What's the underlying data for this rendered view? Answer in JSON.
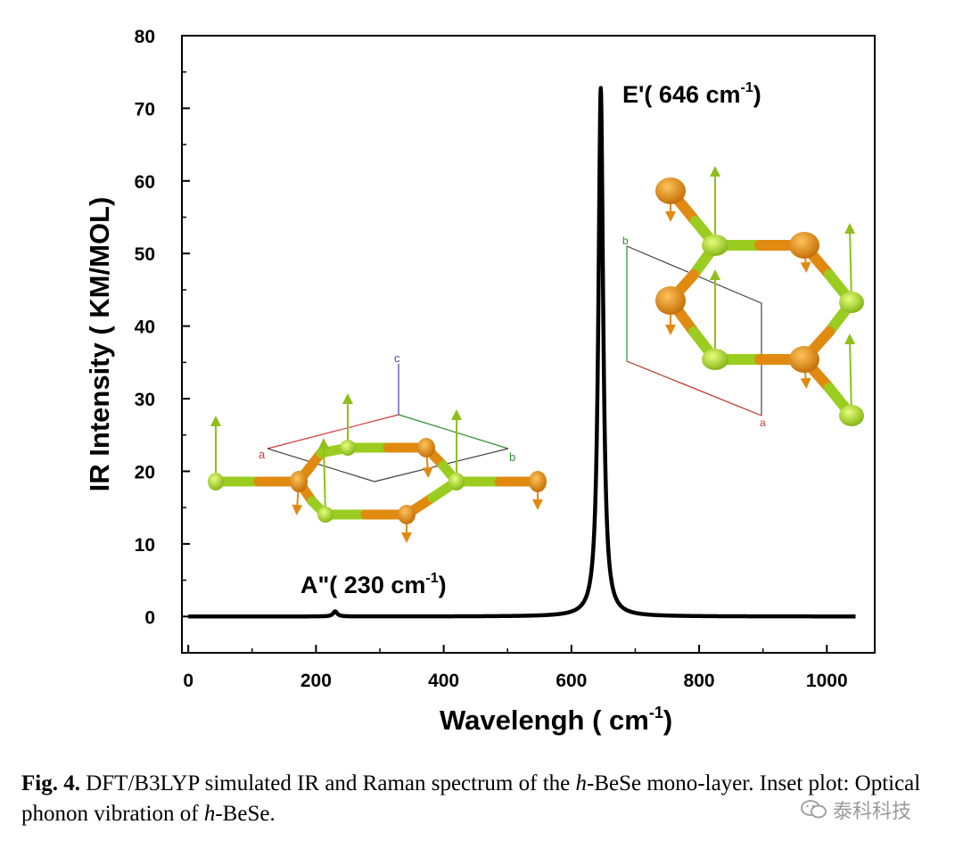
{
  "chart_data": {
    "type": "line",
    "xlabel": "Wavelengh ( cm",
    "xlabel_sup": "-1",
    "xlabel_tail": ")",
    "ylabel": "IR Intensity ( KM/MOL)",
    "xlim": [
      -10,
      1075
    ],
    "ylim": [
      -5,
      80
    ],
    "xticks": [
      "0",
      "200",
      "400",
      "600",
      "800",
      "1000"
    ],
    "xtick_values": [
      0,
      200,
      400,
      600,
      800,
      1000
    ],
    "yticks": [
      "0",
      "10",
      "20",
      "30",
      "40",
      "50",
      "60",
      "70",
      "80"
    ],
    "ytick_values": [
      0,
      10,
      20,
      30,
      40,
      50,
      60,
      70,
      80
    ],
    "series": [
      {
        "color": "#000000",
        "x_range": [
          0,
          1045
        ],
        "baseline": 0,
        "peaks": [
          {
            "x": 230,
            "height": 0.7,
            "hwhm": 4
          },
          {
            "x": 646,
            "height": 72.8,
            "hwhm": 4.5
          }
        ]
      }
    ],
    "annotations": [
      {
        "text": "E'( 646 cm",
        "sup": "-1",
        "tail": ")",
        "x": 646,
        "y": 72.8
      },
      {
        "text": "A\"( 230 cm",
        "sup": "-1",
        "tail": ")",
        "x": 230,
        "y": 0.7
      }
    ]
  },
  "insets": {
    "left_cell_labels": {
      "a": "a",
      "b": "b",
      "c": "c"
    },
    "right_cell_labels": {
      "a": "a",
      "b": "b"
    },
    "colors": {
      "be": "#9ACD1F",
      "se": "#E08A10",
      "arrow": "#8FBF1A",
      "axis_a": "#d03a3a",
      "axis_b": "#2f8f2f",
      "axis_c": "#4040b0"
    }
  },
  "caption": {
    "label": "Fig. 4.",
    "text_before_italic": " DFT/B3LYP simulated IR and Raman spectrum of the ",
    "italic1": "h",
    "text_mid": "-BeSe mono-layer. Inset plot: Optical phonon vibration of ",
    "italic2": "h",
    "text_end": "-BeSe."
  },
  "watermark": {
    "text": "泰科科技",
    "icon": "wechat-icon"
  }
}
